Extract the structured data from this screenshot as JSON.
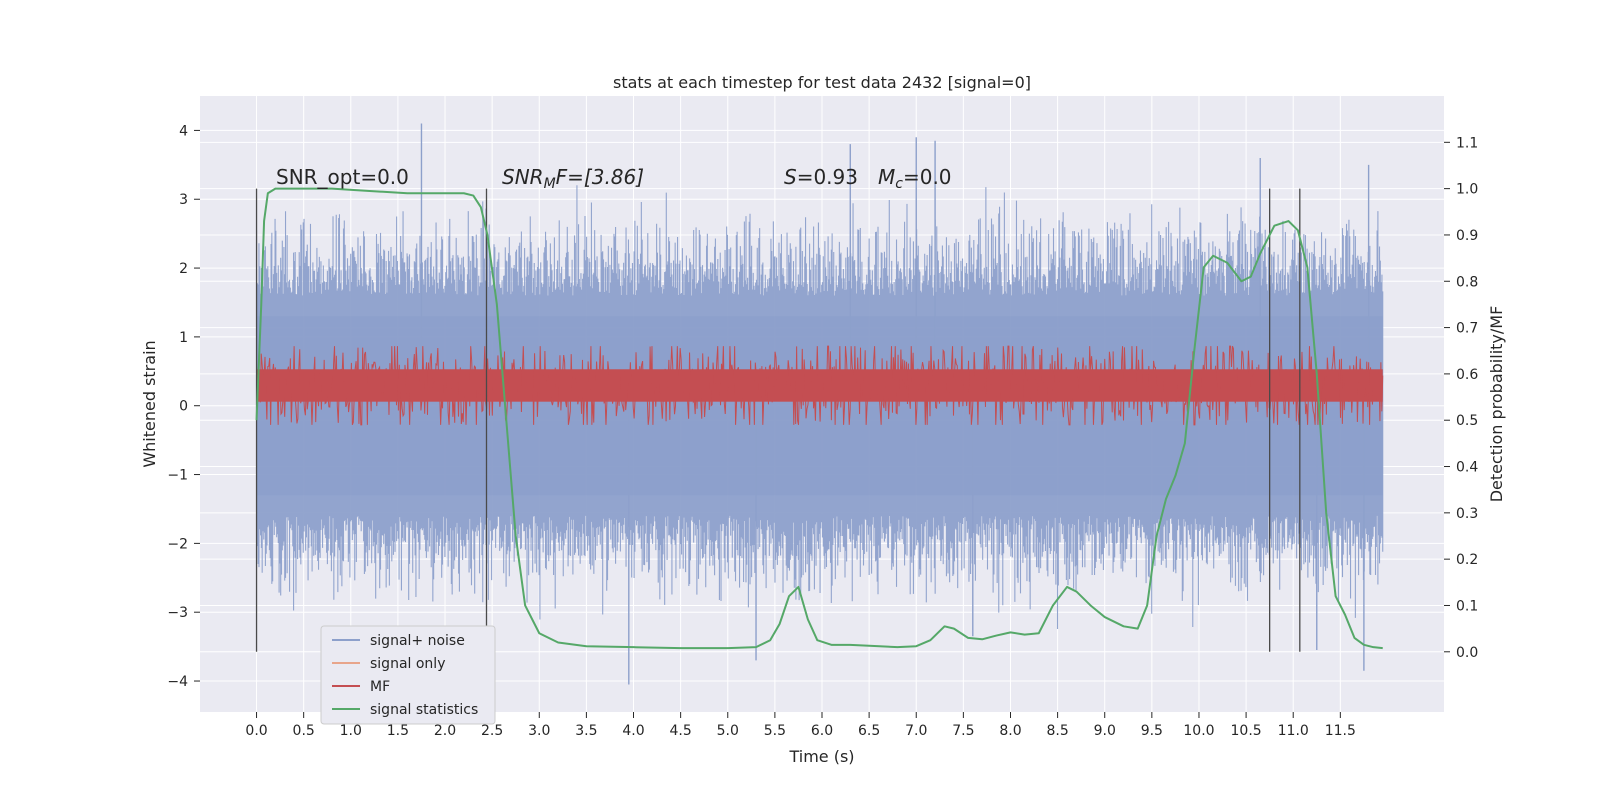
{
  "chart_data": {
    "type": "line",
    "title": "stats at each timestep for test data 2432 [signal=0]",
    "xlabel": "Time (s)",
    "ylabel": "Whitened strain",
    "y2label": "Detection probability/MF",
    "xlim": [
      -0.6,
      12.6
    ],
    "ylim": [
      -4.45,
      4.5
    ],
    "y2lim": [
      -0.13,
      1.2
    ],
    "x_ticks": [
      "0.0",
      "0.5",
      "1.0",
      "1.5",
      "2.0",
      "2.5",
      "3.0",
      "3.5",
      "4.0",
      "4.5",
      "5.0",
      "5.5",
      "6.0",
      "6.5",
      "7.0",
      "7.5",
      "8.0",
      "8.5",
      "9.0",
      "9.5",
      "10.0",
      "10.5",
      "11.0",
      "11.5"
    ],
    "y_ticks": [
      4,
      3,
      2,
      1,
      0,
      -1,
      -2,
      -3,
      -4
    ],
    "y2_ticks": [
      "1.1",
      "1.0",
      "0.9",
      "0.8",
      "0.7",
      "0.6",
      "0.5",
      "0.4",
      "0.3",
      "0.2",
      "0.1",
      "0.0"
    ],
    "grid": true,
    "legend_placement": "lower-left",
    "annotations": {
      "snr_opt": "SNR_opt=0.0",
      "snr_mf": "SNR",
      "snr_mf_sub": "M",
      "snr_mf_rest": "F=[3.86]",
      "s_label": "S",
      "s_value": "=0.93",
      "mc_label": "M",
      "mc_sub": "c",
      "mc_value": "=0.0"
    },
    "vertical_markers": [
      0.0,
      2.44,
      10.75,
      11.07
    ],
    "series": [
      {
        "name": "signal+ noise",
        "color": "#8da0cb",
        "axis": "left",
        "x_range": [
          0.0,
          11.95
        ],
        "typical_range": [
          -2.5,
          2.5
        ],
        "peaks": [
          {
            "x": 1.75,
            "y": 4.1
          },
          {
            "x": 6.3,
            "y": 3.8
          },
          {
            "x": 7.0,
            "y": 3.9
          },
          {
            "x": 7.2,
            "y": 3.85
          },
          {
            "x": 10.65,
            "y": 3.6
          },
          {
            "x": 11.8,
            "y": 3.5
          },
          {
            "x": 3.95,
            "y": -4.05
          },
          {
            "x": 5.3,
            "y": -3.7
          },
          {
            "x": 11.25,
            "y": -3.55
          },
          {
            "x": 11.75,
            "y": -3.85
          },
          {
            "x": 7.6,
            "y": -3.35
          }
        ]
      },
      {
        "name": "signal only",
        "color": "#e8a58b",
        "axis": "left",
        "values_note": ""
      },
      {
        "name": "MF",
        "color": "#c44e52",
        "axis": "right",
        "x_range": [
          0.0,
          11.95
        ],
        "typical_range": [
          0.52,
          0.63
        ]
      },
      {
        "name": "signal statistics",
        "color": "#55a868",
        "axis": "right",
        "x": [
          0.0,
          0.05,
          0.08,
          0.12,
          0.2,
          0.4,
          0.8,
          1.2,
          1.6,
          2.0,
          2.2,
          2.3,
          2.38,
          2.45,
          2.55,
          2.65,
          2.75,
          2.85,
          3.0,
          3.2,
          3.5,
          4.0,
          4.5,
          5.0,
          5.3,
          5.45,
          5.55,
          5.65,
          5.75,
          5.85,
          5.95,
          6.1,
          6.3,
          6.5,
          6.8,
          7.0,
          7.15,
          7.3,
          7.4,
          7.55,
          7.7,
          7.85,
          8.0,
          8.15,
          8.3,
          8.45,
          8.6,
          8.7,
          8.85,
          9.0,
          9.2,
          9.35,
          9.45,
          9.55,
          9.65,
          9.75,
          9.85,
          9.95,
          10.05,
          10.15,
          10.3,
          10.45,
          10.55,
          10.65,
          10.8,
          10.95,
          11.05,
          11.15,
          11.25,
          11.35,
          11.45,
          11.55,
          11.65,
          11.75,
          11.85,
          11.95
        ],
        "y": [
          0.5,
          0.75,
          0.93,
          0.99,
          1.0,
          1.0,
          1.0,
          0.995,
          0.99,
          0.99,
          0.99,
          0.985,
          0.96,
          0.9,
          0.75,
          0.5,
          0.25,
          0.1,
          0.04,
          0.02,
          0.012,
          0.01,
          0.008,
          0.008,
          0.01,
          0.025,
          0.06,
          0.12,
          0.14,
          0.07,
          0.025,
          0.015,
          0.015,
          0.013,
          0.01,
          0.012,
          0.025,
          0.055,
          0.05,
          0.03,
          0.027,
          0.035,
          0.042,
          0.037,
          0.04,
          0.1,
          0.14,
          0.13,
          0.1,
          0.075,
          0.055,
          0.05,
          0.1,
          0.25,
          0.33,
          0.38,
          0.45,
          0.65,
          0.83,
          0.855,
          0.84,
          0.8,
          0.81,
          0.86,
          0.92,
          0.93,
          0.91,
          0.83,
          0.6,
          0.3,
          0.12,
          0.08,
          0.03,
          0.015,
          0.01,
          0.008
        ]
      }
    ]
  }
}
